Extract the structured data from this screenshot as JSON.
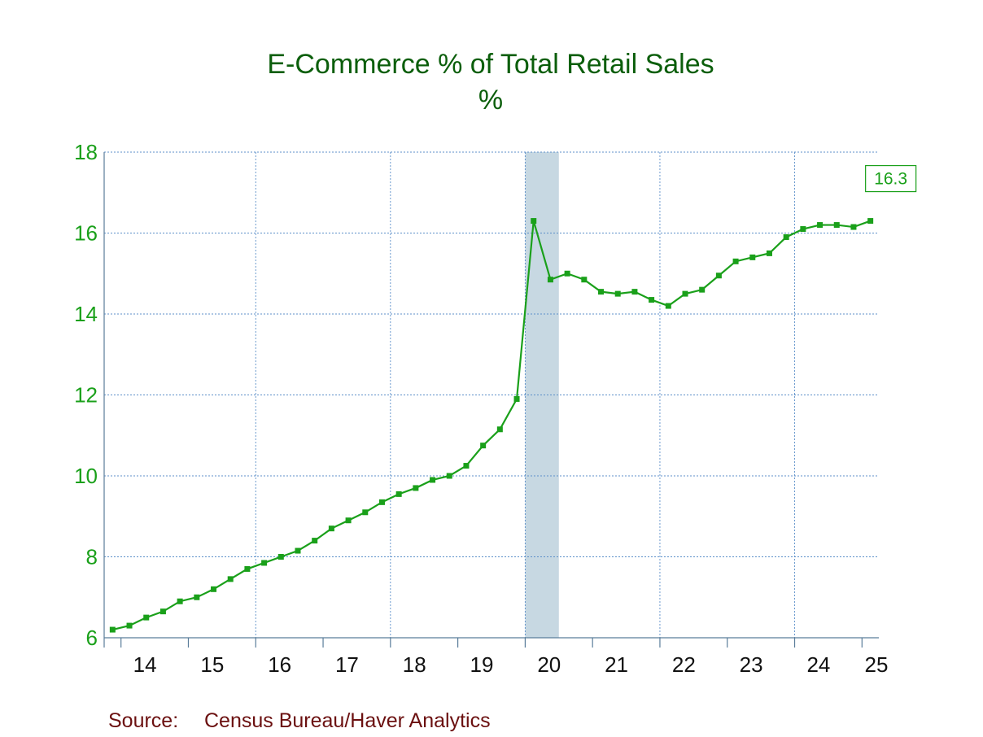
{
  "chart_data": {
    "type": "line",
    "title": "E-Commerce % of Total Retail Sales",
    "subtitle": "%",
    "source_label": "Source:",
    "source_text": "Census Bureau/Haver Analytics",
    "ylim": [
      6,
      18
    ],
    "yticks": [
      "18",
      "16",
      "14",
      "12",
      "10",
      "8",
      "6"
    ],
    "xlabels": [
      "14",
      "15",
      "16",
      "17",
      "18",
      "19",
      "20",
      "21",
      "22",
      "23",
      "24",
      "25"
    ],
    "grid": true,
    "recession_shading": [
      2020.0,
      2020.5
    ],
    "series": [
      {
        "values": [
          6.2,
          6.3,
          6.5,
          6.65,
          6.9,
          7.0,
          7.2,
          7.45,
          7.7,
          7.85,
          8.0,
          8.15,
          8.4,
          8.7,
          8.9,
          9.1,
          9.35,
          9.55,
          9.7,
          9.9,
          10.0,
          10.25,
          10.75,
          11.15,
          11.9,
          16.3,
          14.85,
          15.0,
          14.85,
          14.55,
          14.5,
          14.55,
          14.35,
          14.2,
          14.5,
          14.6,
          14.95,
          15.3,
          15.4,
          15.5,
          15.9,
          16.1,
          16.2,
          16.2,
          16.15,
          16.3
        ]
      }
    ],
    "last_value_label": "16.3",
    "colors": {
      "line": "#1aa01a",
      "title": "#0b5e0b",
      "grid": "#5c8fc9",
      "recession": "#c7d8e2",
      "source": "#6b1010"
    }
  }
}
